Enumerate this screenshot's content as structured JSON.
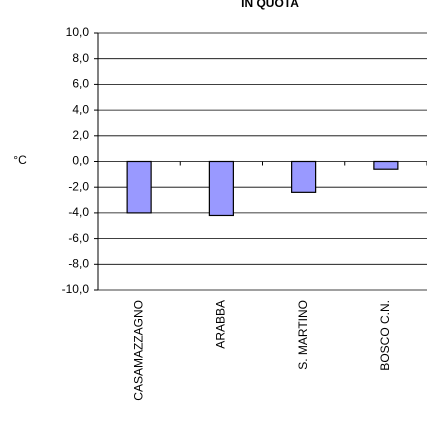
{
  "chart_data": {
    "type": "bar",
    "title": "IN QUOTA",
    "ylabel": "°C",
    "categories": [
      "CASAMAZZAGNO",
      "ARABBA",
      "S. MARTINO",
      "BOSCO C.N."
    ],
    "values": [
      -4.0,
      -4.2,
      -2.4,
      -0.6
    ],
    "color": "#9999ff",
    "ylim": [
      -10,
      10
    ],
    "yticks": [
      {
        "value": -10,
        "label": "-10,0"
      },
      {
        "value": -8,
        "label": "-8,0"
      },
      {
        "value": -6,
        "label": "-6,0"
      },
      {
        "value": -4,
        "label": "-4,0"
      },
      {
        "value": -2,
        "label": "-2,0"
      },
      {
        "value": 0,
        "label": "0,0"
      },
      {
        "value": 2,
        "label": "2,0"
      },
      {
        "value": 4,
        "label": "4,0"
      },
      {
        "value": 6,
        "label": "6,0"
      },
      {
        "value": 8,
        "label": "8,0"
      },
      {
        "value": 10,
        "label": "10,0"
      }
    ],
    "grid": true
  }
}
